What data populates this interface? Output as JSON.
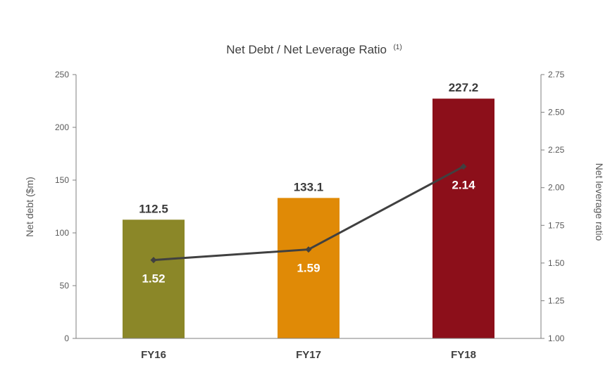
{
  "chart_data": {
    "type": "bar",
    "title": "Net Debt / Net Leverage Ratio",
    "title_superscript": "(1)",
    "categories": [
      "FY16",
      "FY17",
      "FY18"
    ],
    "series": [
      {
        "name": "Net debt ($m)",
        "type": "bar",
        "axis": "left",
        "values": [
          112.5,
          133.1,
          227.2
        ],
        "labels": [
          "112.5",
          "133.1",
          "227.2"
        ],
        "colors": [
          "#8b8728",
          "#e08a06",
          "#8c0f1a"
        ]
      },
      {
        "name": "Net leverage ratio",
        "type": "line",
        "axis": "right",
        "values": [
          1.52,
          1.59,
          2.14
        ],
        "labels": [
          "1.52",
          "1.59",
          "2.14"
        ],
        "color": "#404040"
      }
    ],
    "ylabel": "Net debt ($m)",
    "ylim": [
      0,
      250
    ],
    "yticks": [
      "0",
      "50",
      "100",
      "150",
      "200",
      "250"
    ],
    "y2label": "Net leverage ratio",
    "y2lim": [
      1.0,
      2.75
    ],
    "y2ticks": [
      "1.00",
      "1.25",
      "1.50",
      "1.75",
      "2.00",
      "2.25",
      "2.50",
      "2.75"
    ],
    "grid": false,
    "legend": "none"
  }
}
